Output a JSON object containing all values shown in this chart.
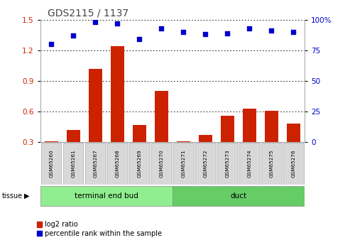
{
  "title": "GDS2115 / 1137",
  "samples": [
    "GSM65260",
    "GSM65261",
    "GSM65267",
    "GSM65268",
    "GSM65269",
    "GSM65270",
    "GSM65271",
    "GSM65272",
    "GSM65273",
    "GSM65274",
    "GSM65275",
    "GSM65276"
  ],
  "log2_ratio": [
    0.31,
    0.42,
    1.02,
    1.24,
    0.47,
    0.8,
    0.31,
    0.37,
    0.56,
    0.63,
    0.61,
    0.48
  ],
  "percentile_rank": [
    80,
    87,
    98,
    97,
    84,
    93,
    90,
    88,
    89,
    93,
    91,
    90
  ],
  "groups": [
    {
      "label": "terminal end bud",
      "start": 0,
      "end": 6,
      "color": "#90ee90"
    },
    {
      "label": "duct",
      "start": 6,
      "end": 12,
      "color": "#66cc66"
    }
  ],
  "ylim_left": [
    0.3,
    1.5
  ],
  "ylim_right": [
    0,
    100
  ],
  "yticks_left": [
    0.3,
    0.6,
    0.9,
    1.2,
    1.5
  ],
  "yticks_right": [
    0,
    25,
    50,
    75,
    100
  ],
  "bar_color": "#cc2200",
  "dot_color": "#0000cc",
  "tick_label_color_left": "#cc2200",
  "tick_label_color_right": "#0000cc",
  "title_color": "#444444",
  "sample_box_color": "#d8d8d8",
  "group_border_color": "#888888",
  "figsize": [
    4.93,
    3.45
  ],
  "dpi": 100
}
